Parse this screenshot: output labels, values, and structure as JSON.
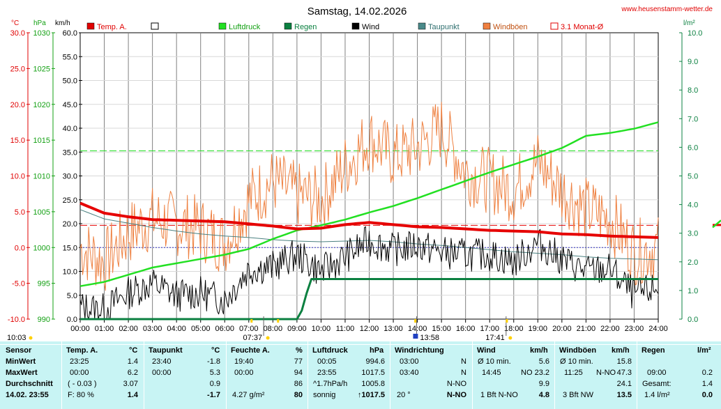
{
  "header": {
    "title": "Samstag, 14.02.2026",
    "website": "www.heusenstamm-wetter.de",
    "unit_temp": "°C",
    "unit_hpa": "hPa",
    "unit_kmh": "km/h",
    "unit_rain": "l/m²"
  },
  "legend": [
    {
      "label": "Temp. A.",
      "color": "#e00000",
      "style": "fill"
    },
    {
      "label": "",
      "color": "#ffffff",
      "style": "outline"
    },
    {
      "label": "Luftdruck",
      "color": "#22e022",
      "style": "fill"
    },
    {
      "label": "Regen",
      "color": "#0b8040",
      "style": "fill"
    },
    {
      "label": "Wind",
      "color": "#000000",
      "style": "fill"
    },
    {
      "label": "Taupunkt",
      "color": "#4a8a8a",
      "style": "fill"
    },
    {
      "label": "Windböen",
      "color": "#f08040",
      "style": "fill"
    },
    {
      "label": "3.1 Monat-Ø",
      "color": "#e00000",
      "style": "outline"
    }
  ],
  "markers": {
    "sunrise_time": "07:37",
    "sunset_time": "17:41",
    "noon_time": "13:58",
    "left_time": "10:03"
  },
  "colors": {
    "temp": "#e60000",
    "pressure": "#22e022",
    "rain": "#0b8040",
    "wind": "#000000",
    "dewpoint": "#4a8080",
    "gusts": "#ee8040",
    "axis_temp": "#e00000",
    "axis_hpa": "#13a013",
    "axis_rain": "#0b8040",
    "table_bg": "#c8f4f4"
  },
  "chart_data": {
    "type": "line",
    "title": "Samstag, 14.02.2026",
    "x_tick_labels": [
      "00:00",
      "01:00",
      "02:00",
      "03:00",
      "04:00",
      "05:00",
      "06:00",
      "07:00",
      "08:00",
      "09:00",
      "10:00",
      "11:00",
      "12:00",
      "13:00",
      "14:00",
      "15:00",
      "16:00",
      "17:00",
      "18:00",
      "19:00",
      "20:00",
      "21:00",
      "22:00",
      "23:00",
      "24:00"
    ],
    "x_range_hours": [
      0,
      24
    ],
    "y_axes": {
      "temp": {
        "unit": "°C",
        "range": [
          -10,
          30
        ],
        "ticks": [
          "30.0",
          "25.0",
          "20.0",
          "15.0",
          "10.0",
          "5.0",
          "0.0",
          "-5.0",
          "-10.0"
        ]
      },
      "pressure": {
        "unit": "hPa",
        "range": [
          990,
          1030
        ],
        "ticks": [
          "1030",
          "1025",
          "1020",
          "1015",
          "1010",
          "1005",
          "1000",
          "995",
          "990"
        ]
      },
      "wind": {
        "unit": "km/h",
        "range": [
          0,
          60
        ],
        "ticks": [
          "60.0",
          "55.0",
          "50.0",
          "45.0",
          "40.0",
          "35.0",
          "30.0",
          "25.0",
          "20.0",
          "15.0",
          "10.0",
          "5.0",
          "0.0"
        ]
      },
      "rain": {
        "unit": "l/m²",
        "range": [
          0,
          10
        ],
        "ticks": [
          "10.0",
          "9.0",
          "8.0",
          "7.0",
          "6.0",
          "5.0",
          "4.0",
          "3.0",
          "2.0",
          "1.0",
          "0.0"
        ]
      }
    },
    "reference_lines": {
      "pressure_month_avg_hpa": 1013.5,
      "temp_month_avg_c": 3.1,
      "temp_zero_c": 0.0
    },
    "series": [
      {
        "name": "Temp. A.",
        "axis": "temp",
        "x": [
          0,
          1,
          2,
          3,
          4,
          5,
          6,
          7,
          8,
          9,
          10,
          11,
          12,
          13,
          14,
          15,
          16,
          17,
          18,
          19,
          20,
          21,
          22,
          23,
          24
        ],
        "y": [
          6.2,
          4.8,
          4.3,
          3.9,
          3.8,
          3.7,
          3.6,
          3.3,
          3.0,
          2.6,
          2.7,
          3.2,
          3.5,
          3.2,
          2.9,
          2.8,
          2.6,
          2.4,
          2.3,
          2.2,
          1.9,
          1.8,
          1.6,
          1.5,
          1.4
        ]
      },
      {
        "name": "Taupunkt",
        "axis": "temp",
        "x": [
          0,
          1,
          2,
          3,
          4,
          5,
          6,
          7,
          8,
          9,
          10,
          11,
          12,
          13,
          14,
          15,
          16,
          17,
          18,
          19,
          20,
          21,
          22,
          23,
          24
        ],
        "y": [
          5.3,
          4.0,
          3.4,
          2.8,
          2.3,
          1.9,
          1.6,
          1.4,
          1.1,
          0.9,
          0.8,
          0.9,
          1.0,
          0.8,
          0.5,
          0.3,
          0.0,
          -0.3,
          -0.6,
          -0.8,
          -1.0,
          -1.3,
          -1.5,
          -1.6,
          -1.7
        ]
      },
      {
        "name": "Luftdruck",
        "axis": "pressure",
        "x": [
          0,
          1,
          2,
          3,
          4,
          5,
          6,
          7,
          8,
          9,
          10,
          11,
          12,
          13,
          14,
          15,
          16,
          17,
          18,
          19,
          20,
          21,
          22,
          23,
          24
        ],
        "y": [
          994.6,
          995.2,
          996.2,
          997.2,
          997.8,
          998.4,
          999.0,
          999.8,
          1001.2,
          1002.4,
          1003.1,
          1003.9,
          1004.9,
          1005.8,
          1006.9,
          1008.1,
          1009.3,
          1010.5,
          1011.6,
          1012.7,
          1013.9,
          1015.6,
          1016.0,
          1016.6,
          1017.5
        ]
      },
      {
        "name": "Wind",
        "axis": "wind",
        "x": [
          0,
          1,
          2,
          3,
          4,
          5,
          6,
          7,
          8,
          9,
          10,
          11,
          12,
          13,
          14,
          15,
          16,
          17,
          18,
          19,
          20,
          21,
          22,
          23,
          24
        ],
        "y": [
          2.5,
          2.0,
          5.5,
          7.5,
          5.0,
          5.5,
          4.0,
          10.5,
          11.0,
          13.5,
          10.0,
          13.0,
          16.5,
          14.5,
          15.5,
          14.0,
          13.5,
          13.5,
          12.0,
          16.0,
          12.5,
          10.0,
          10.5,
          5.0,
          6.5
        ]
      },
      {
        "name": "Windböen",
        "axis": "wind",
        "x": [
          0,
          1,
          2,
          3,
          4,
          5,
          6,
          7,
          8,
          9,
          10,
          11,
          12,
          13,
          14,
          15,
          16,
          17,
          18,
          19,
          20,
          21,
          22,
          23,
          24
        ],
        "y": [
          15.0,
          12.0,
          18.0,
          21.0,
          20.0,
          19.0,
          16.0,
          25.0,
          29.0,
          26.0,
          25.0,
          32.0,
          38.0,
          34.0,
          36.0,
          40.0,
          31.0,
          29.0,
          27.0,
          33.0,
          27.0,
          23.0,
          21.0,
          14.0,
          15.0
        ]
      },
      {
        "name": "Regen",
        "axis": "rain",
        "x": [
          0,
          7.5,
          9.0,
          9.2,
          9.4,
          9.6,
          10.0,
          24.0
        ],
        "y": [
          0,
          0,
          0,
          0.3,
          0.9,
          1.4,
          1.4,
          1.4
        ]
      }
    ]
  },
  "table": {
    "sensor": {
      "header": "Sensor",
      "row1": "MinWert",
      "row2": "MaxWert",
      "row3": "Durchschnitt",
      "row4": "14.02. 23:55"
    },
    "temp": {
      "header": "Temp. A.",
      "unit": "°C",
      "min_time": "23:25",
      "min_val": "1.4",
      "max_time": "00:00",
      "max_val": "6.2",
      "avg_note": "( - 0.03 )",
      "avg_val": "3.07",
      "cur_note": "F: 80 %",
      "cur_val": "1.4"
    },
    "dew": {
      "header": "Taupunkt",
      "unit": "°C",
      "min_time": "23:40",
      "min_val": "-1.8",
      "max_time": "00:00",
      "max_val": "5.3",
      "avg_val": "0.9",
      "cur_val": "-1.7"
    },
    "hum": {
      "header": "Feuchte A.",
      "unit": "%",
      "min_time": "19:40",
      "min_val": "77",
      "max_time": "00:00",
      "max_val": "94",
      "avg_val": "86",
      "cur_note": "4.27 g/m²",
      "cur_val": "80"
    },
    "press": {
      "header": "Luftdruck",
      "unit": "hPa",
      "min_time": "00:05",
      "min_val": "994.6",
      "max_time": "23:55",
      "max_val": "1017.5",
      "avg_note": "^1.7hPa/h",
      "avg_val": "1005.8",
      "cur_note": "sonnig",
      "cur_val": "↑1017.5"
    },
    "wdir": {
      "header": "Windrichtung",
      "min_time": "03:00",
      "min_val": "N",
      "max_time": "03:40",
      "max_val": "N",
      "avg_val": "N-NO",
      "cur_note": "20 °",
      "cur_val": "N-NO"
    },
    "wind": {
      "header": "Wind",
      "unit": "km/h",
      "min_note": "Ø 10 min.",
      "min_val": "5.6",
      "max_time": "14:45",
      "max_dir": "NO",
      "max_val": "23.2",
      "avg_val": "9.9",
      "cur_note": "1 Bft N-NO",
      "cur_val": "4.8"
    },
    "gust": {
      "header": "Windböen",
      "unit": "km/h",
      "min_note": "Ø 10 min.",
      "min_val": "15.8",
      "max_time": "11:25",
      "max_dir": "N-NO",
      "max_val": "47.3",
      "avg_val": "24.1",
      "cur_note": "3 Bft NW",
      "cur_val": "13.5"
    },
    "rain": {
      "header": "Regen",
      "unit": "l/m²",
      "max_time": "09:00",
      "max_val": "0.2",
      "avg_note": "Gesamt:",
      "avg_val": "1.4",
      "cur_note": "1.4 l/m²",
      "cur_val": "0.0"
    }
  }
}
